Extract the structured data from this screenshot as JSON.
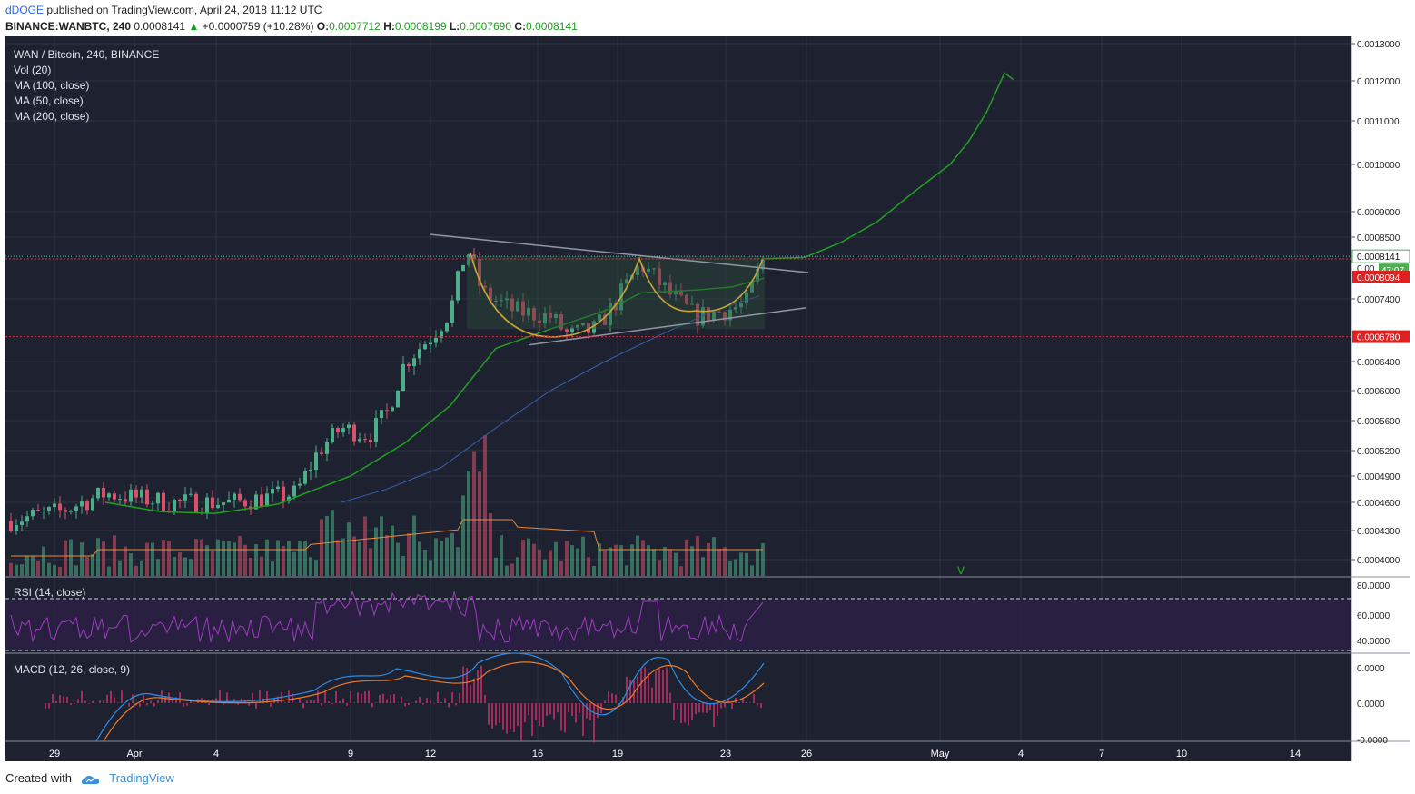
{
  "header": {
    "author": "dDOGE",
    "published_text": "published on TradingView.com, April 24, 2018 11:12 UTC",
    "symbol": "BINANCE:WANBTC, 240",
    "last": "0.0008141",
    "change_arrow": "▲",
    "change": "+0.0000759 (+10.28%)",
    "o_label": "O:",
    "o_value": "0.0007712",
    "h_label": "H:",
    "h_value": "0.0008199",
    "l_label": "L:",
    "l_value": "0.0007690",
    "c_label": "C:",
    "c_value": "0.0008141"
  },
  "legend": [
    "WAN / Bitcoin, 240, BINANCE",
    "Vol (20)",
    "MA (100, close)",
    "MA (50, close)",
    "MA (200, close)"
  ],
  "rsi_label": "RSI (14, close)",
  "macd_label": "MACD (12, 26, close, 9)",
  "price_axis": [
    "0.0013000",
    "0.0012000",
    "0.0011000",
    "0.0010000",
    "0.0009000",
    "0.0008500",
    "0.0007400",
    "0.0006400",
    "0.0006000",
    "0.0005600",
    "0.0005200",
    "0.0004900",
    "0.0004600",
    "0.0004300",
    "0.0004000"
  ],
  "price_tags": {
    "last": "0.0008141",
    "countdown": "47:07",
    "partial": "0.00",
    "red1": "0.0008094",
    "red2": "0.0006780"
  },
  "rsi_axis": [
    "80.0000",
    "60.0000",
    "40.0000"
  ],
  "macd_axis": [
    "0.0000",
    "0.0000",
    "-0.0000"
  ],
  "x_axis": [
    "29",
    "Apr",
    "4",
    "9",
    "12",
    "16",
    "19",
    "23",
    "26",
    "May",
    "4",
    "7",
    "10",
    "14"
  ],
  "annotation_mark": "v",
  "footer": {
    "created_with": "Created with",
    "brand": "TradingView"
  },
  "colors": {
    "background": "#1e2230",
    "grid": "#2f3444",
    "up": "#4caf87",
    "down": "#d9506a",
    "ma100": "#1fa11f",
    "ma200": "#3a5fb0",
    "vol_ma": "#e8893a",
    "rsi": "#a03cc0",
    "macd": "#2e8be6",
    "signal": "#ef7a26",
    "cup": "#c9a636",
    "tag_green": "#4caf50",
    "tag_red": "#e02020"
  },
  "chart_data": {
    "type": "candlestick",
    "timeframe": "240",
    "approx_daily_close": [
      {
        "date": "Mar 28",
        "close": 0.00044
      },
      {
        "date": "Mar 31",
        "close": 0.00047
      },
      {
        "date": "Apr 4",
        "close": 0.00046
      },
      {
        "date": "Apr 8",
        "close": 0.00052
      },
      {
        "date": "Apr 10",
        "close": 0.00056
      },
      {
        "date": "Apr 12",
        "close": 0.00069
      },
      {
        "date": "Apr 13",
        "close": 0.00079
      },
      {
        "date": "Apr 15",
        "close": 0.00074
      },
      {
        "date": "Apr 17",
        "close": 0.00069
      },
      {
        "date": "Apr 19",
        "close": 0.00081
      },
      {
        "date": "Apr 21",
        "close": 0.00074
      },
      {
        "date": "Apr 22",
        "close": 0.00071
      },
      {
        "date": "Apr 24",
        "close": 0.0008141
      }
    ],
    "ma100_projection": "rises toward 0.0013 by early May",
    "levels": [
      0.0008094,
      0.000678
    ],
    "rsi_levels": [
      70,
      30
    ],
    "ylim": [
      0.00038,
      0.00132
    ],
    "y_scale": "log"
  }
}
